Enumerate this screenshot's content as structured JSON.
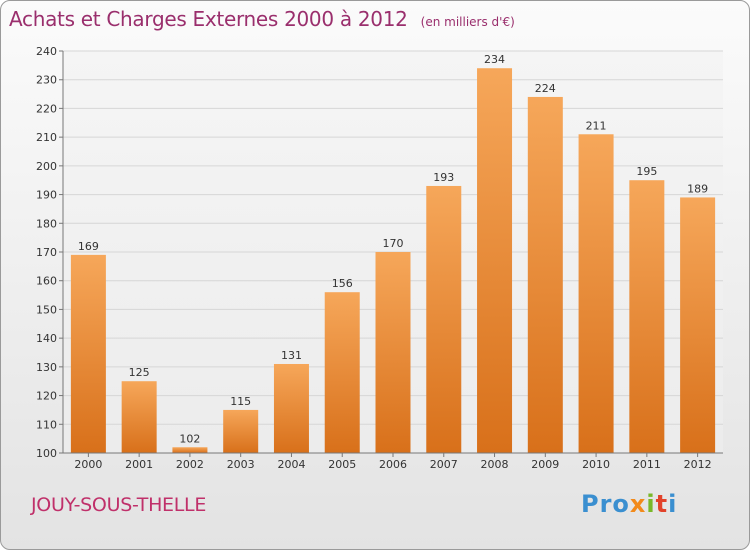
{
  "header": {
    "title": "Achats et Charges Externes 2000 à 2012",
    "subtitle": "(en milliers d'€)"
  },
  "footer": {
    "city": "JOUY-SOUS-THELLE",
    "logo": [
      "Pro",
      "x",
      "i",
      "t",
      "i"
    ]
  },
  "colors": {
    "bar_top": "#f6a75a",
    "bar_bottom": "#d8701a",
    "title": "#9a2f6d",
    "city": "#c0306a"
  },
  "chart_data": {
    "type": "bar",
    "title": "Achats et Charges Externes 2000 à 2012",
    "subtitle": "(en milliers d'€)",
    "categories": [
      "2000",
      "2001",
      "2002",
      "2003",
      "2004",
      "2005",
      "2006",
      "2007",
      "2008",
      "2009",
      "2010",
      "2011",
      "2012"
    ],
    "values": [
      169,
      125,
      102,
      115,
      131,
      156,
      170,
      193,
      234,
      224,
      211,
      195,
      189
    ],
    "ylim": [
      100,
      240
    ],
    "yticks": [
      100,
      110,
      120,
      130,
      140,
      150,
      160,
      170,
      180,
      190,
      200,
      210,
      220,
      230,
      240
    ],
    "grid": true,
    "data_labels": true
  }
}
